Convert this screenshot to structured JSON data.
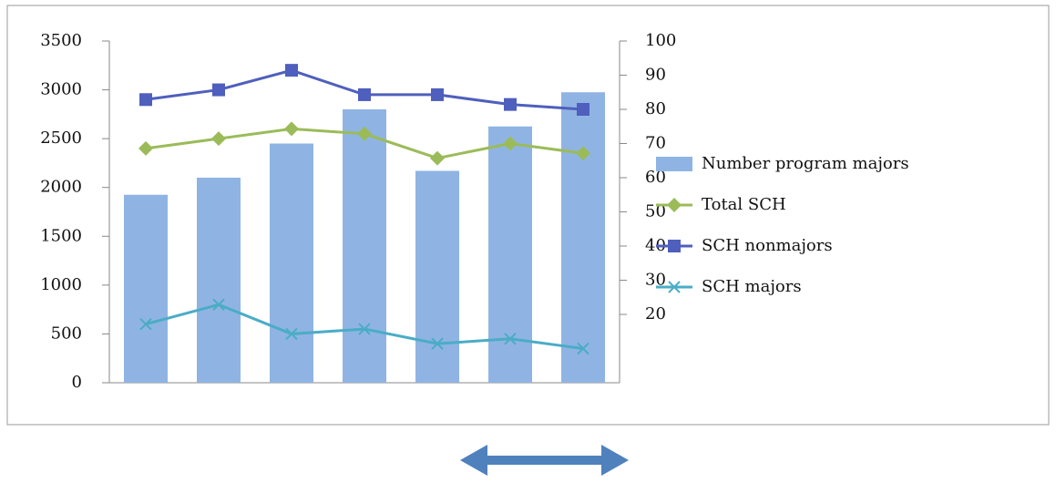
{
  "chart_data": {
    "type": "combo",
    "categories": [
      null,
      null,
      null,
      null,
      null,
      null,
      null
    ],
    "ylim": [
      0,
      3500
    ],
    "yticks": [
      0,
      500,
      1000,
      1500,
      2000,
      2500,
      3000,
      3500
    ],
    "y2lim": [
      0,
      100
    ],
    "y2ticks": [
      20,
      30,
      40,
      50,
      60,
      70,
      80,
      90,
      100
    ],
    "legend": "right",
    "series": [
      {
        "name": "Number program majors",
        "type": "bar",
        "axis": "y2",
        "color": "#8fb4e3",
        "values": [
          55,
          60,
          70,
          80,
          62,
          75,
          85
        ]
      },
      {
        "name": "Total SCH",
        "type": "line",
        "marker": "diamond",
        "color": "#9bbb59",
        "values": [
          2400,
          2500,
          2600,
          2550,
          2300,
          2450,
          2350
        ]
      },
      {
        "name": "SCH nonmajors",
        "type": "line",
        "marker": "square",
        "color": "#4f5fbd",
        "values": [
          2900,
          3000,
          3200,
          2950,
          2950,
          2850,
          2800
        ]
      },
      {
        "name": "SCH majors",
        "type": "line",
        "marker": "x",
        "color": "#4bacc6",
        "values": [
          600,
          800,
          500,
          550,
          400,
          450,
          350
        ]
      }
    ]
  }
}
